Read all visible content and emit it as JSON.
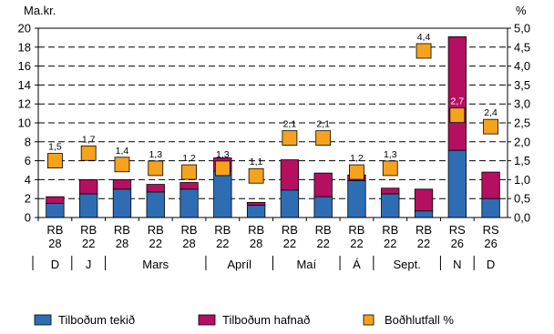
{
  "chart_data": {
    "type": "bar",
    "stacked": true,
    "y_left_label": "Ma.kr.",
    "y_right_label": "%",
    "ylim_left": [
      0,
      20
    ],
    "yticks_left": [
      "0",
      "2",
      "4",
      "6",
      "8",
      "10",
      "12",
      "14",
      "16",
      "18",
      "20"
    ],
    "ylim_right": [
      0,
      5
    ],
    "yticks_right": [
      "0,0",
      "0,5",
      "1,0",
      "1,5",
      "2,0",
      "2,5",
      "3,0",
      "3,5",
      "4,0",
      "4,5",
      "5,0"
    ],
    "grid": "dashed-horizontal",
    "categories": [
      [
        "RB",
        "28"
      ],
      [
        "RB",
        "22"
      ],
      [
        "RB",
        "28"
      ],
      [
        "RB",
        "22"
      ],
      [
        "RB",
        "28"
      ],
      [
        "RB",
        "22"
      ],
      [
        "RB",
        "28"
      ],
      [
        "RB",
        "22"
      ],
      [
        "RB",
        "22"
      ],
      [
        "RB",
        "22"
      ],
      [
        "RB",
        "22"
      ],
      [
        "RB",
        "22"
      ],
      [
        "RS",
        "26"
      ],
      [
        "RS",
        "26"
      ]
    ],
    "month_groups": [
      {
        "label": "D",
        "count": 1
      },
      {
        "label": "J",
        "count": 1
      },
      {
        "label": "Mars",
        "count": 3
      },
      {
        "label": "Apríl",
        "count": 2
      },
      {
        "label": "Maí",
        "count": 2
      },
      {
        "label": "Á",
        "count": 1
      },
      {
        "label": "Sept.",
        "count": 2
      },
      {
        "label": "N",
        "count": 1
      },
      {
        "label": "D",
        "count": 1
      }
    ],
    "series": [
      {
        "name": "Tilboðum tekið",
        "color": "#2e6db4",
        "values": [
          1.5,
          2.5,
          3.0,
          2.7,
          3.0,
          4.9,
          1.3,
          2.9,
          2.2,
          3.9,
          2.5,
          0.7,
          7.1,
          2.0
        ]
      },
      {
        "name": "Tilboðum hafnað",
        "color": "#b40f60",
        "values": [
          0.7,
          1.5,
          1.0,
          0.8,
          0.7,
          1.4,
          0.3,
          3.2,
          2.5,
          0.6,
          0.6,
          2.3,
          12.0,
          2.8
        ]
      },
      {
        "name": "Boðhlutfall %",
        "color": "#f5a21d",
        "type": "marker",
        "axis": "right",
        "values": [
          1.5,
          1.7,
          1.4,
          1.3,
          1.2,
          1.3,
          1.1,
          2.1,
          2.1,
          1.2,
          1.3,
          4.4,
          2.7,
          2.4
        ],
        "labels": [
          "1,5",
          "1,7",
          "1,4",
          "1,3",
          "1,2",
          "1,3",
          "1,1",
          "2,1",
          "2,1",
          "1,2",
          "1,3",
          "4,4",
          "2,7",
          "2,4"
        ]
      }
    ]
  }
}
